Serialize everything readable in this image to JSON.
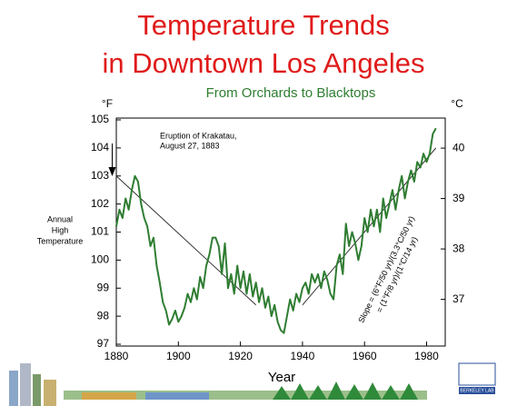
{
  "chart_data": {
    "type": "line",
    "title": [
      "Temperature Trends",
      "in Downtown Los Angeles"
    ],
    "subtitle": "From Orchards to Blacktops",
    "x_label": "Year",
    "y_label": [
      "Annual",
      "High",
      "Temperature"
    ],
    "y_unit": "°F",
    "y2_unit": "°C",
    "annotation": [
      "Eruption of Krakatau,",
      "August 27, 1883"
    ],
    "slope_note": [
      "Slope = (6°F/50 yr)/(3.3°C/50 yr)",
      "= (1°F/8 yr)/(1°C/14 yr)"
    ],
    "logo": "BERKELEY LAB",
    "xlim": [
      1880,
      1986
    ],
    "xticks": [
      1880,
      1900,
      1920,
      1940,
      1960,
      1980
    ],
    "ylim": [
      97,
      105
    ],
    "yticks": [
      97,
      98,
      99,
      100,
      101,
      102,
      103,
      104,
      105
    ],
    "y2lim": [
      36.11,
      40.56
    ],
    "y2ticks": [
      37,
      38,
      39,
      40
    ],
    "x": [
      1880,
      1881,
      1882,
      1883,
      1884,
      1885,
      1886,
      1887,
      1888,
      1889,
      1890,
      1891,
      1892,
      1893,
      1894,
      1895,
      1896,
      1897,
      1898,
      1899,
      1900,
      1901,
      1902,
      1903,
      1904,
      1905,
      1906,
      1907,
      1908,
      1909,
      1910,
      1911,
      1912,
      1913,
      1914,
      1915,
      1916,
      1917,
      1918,
      1919,
      1920,
      1921,
      1922,
      1923,
      1924,
      1925,
      1926,
      1927,
      1928,
      1929,
      1930,
      1931,
      1932,
      1933,
      1934,
      1935,
      1936,
      1937,
      1938,
      1939,
      1940,
      1941,
      1942,
      1943,
      1944,
      1945,
      1946,
      1947,
      1948,
      1949,
      1950,
      1951,
      1952,
      1953,
      1954,
      1955,
      1956,
      1957,
      1958,
      1959,
      1960,
      1961,
      1962,
      1963,
      1964,
      1965,
      1966,
      1967,
      1968,
      1969,
      1970,
      1971,
      1972,
      1973,
      1974,
      1975,
      1976,
      1977,
      1978,
      1979,
      1980,
      1981,
      1982,
      1983
    ],
    "series": [
      {
        "color": "#2f7d32",
        "values": [
          101.2,
          101.8,
          101.5,
          102.2,
          101.8,
          102.5,
          103.0,
          102.8,
          102.0,
          101.5,
          101.2,
          100.5,
          100.8,
          99.8,
          99.2,
          98.5,
          98.2,
          97.7,
          97.9,
          98.2,
          97.8,
          98.0,
          98.3,
          98.8,
          98.5,
          99.0,
          98.6,
          99.4,
          99.0,
          99.8,
          100.2,
          100.8,
          100.8,
          100.5,
          99.5,
          100.6,
          99.0,
          99.5,
          98.8,
          99.8,
          99.0,
          99.6,
          98.8,
          99.5,
          98.7,
          99.2,
          98.5,
          99.0,
          98.3,
          98.7,
          98.0,
          98.4,
          97.8,
          97.5,
          97.4,
          98.0,
          98.6,
          98.2,
          98.8,
          98.5,
          99.0,
          99.2,
          98.8,
          99.5,
          99.2,
          99.5,
          99.0,
          99.6,
          99.3,
          98.8,
          98.6,
          99.8,
          100.2,
          99.5,
          101.3,
          100.5,
          101.0,
          100.6,
          100.0,
          100.5,
          101.5,
          101.0,
          101.8,
          101.2,
          101.8,
          101.0,
          102.2,
          101.5,
          102.0,
          102.5,
          101.8,
          102.5,
          103.0,
          102.2,
          102.8,
          103.2,
          102.8,
          103.5,
          103.3,
          103.8,
          103.5,
          103.8,
          104.5,
          104.7
        ]
      }
    ],
    "trend_lines": [
      {
        "x": [
          1880,
          1925
        ],
        "values": [
          103,
          98.4
        ]
      },
      {
        "x": [
          1940,
          1983
        ],
        "values": [
          98.4,
          104
        ]
      }
    ],
    "annotation_x": 1886
  }
}
